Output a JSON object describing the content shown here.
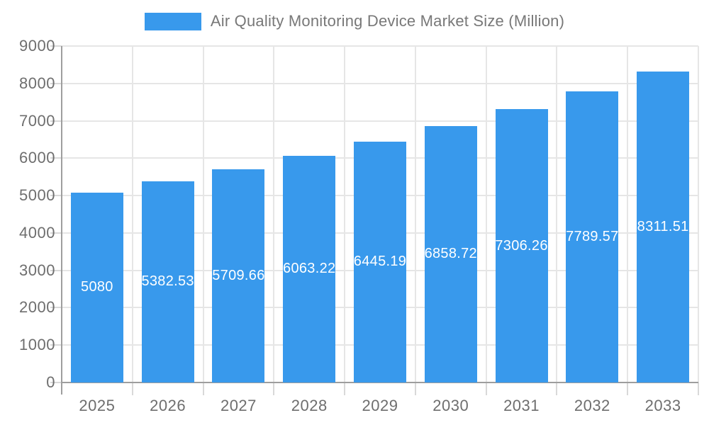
{
  "legend": {
    "label": "Air Quality Monitoring Device Market Size (Million)"
  },
  "chart_data": {
    "type": "bar",
    "title": "Air Quality Monitoring Device Market Size (Million)",
    "categories": [
      "2025",
      "2026",
      "2027",
      "2028",
      "2029",
      "2030",
      "2031",
      "2032",
      "2033"
    ],
    "values": [
      5080,
      5382.53,
      5709.66,
      6063.22,
      6445.19,
      6858.72,
      7306.26,
      7789.57,
      8311.51
    ],
    "xlabel": "",
    "ylabel": "",
    "ylim": [
      0,
      9000
    ],
    "yticks": [
      0,
      1000,
      2000,
      3000,
      4000,
      5000,
      6000,
      7000,
      8000,
      9000
    ],
    "grid": true,
    "legend_position": "top",
    "value_labels": "inside-center-white",
    "colors": {
      "bar": "#3899EC",
      "grid": "#E6E6E6",
      "tick": "#D9D9D9",
      "axis": "#9E9E9E",
      "axis_text": "#6E6E6E",
      "legend_text": "#787878",
      "bar_label_text": "#FFFFFF",
      "background": "#FFFFFF"
    }
  }
}
